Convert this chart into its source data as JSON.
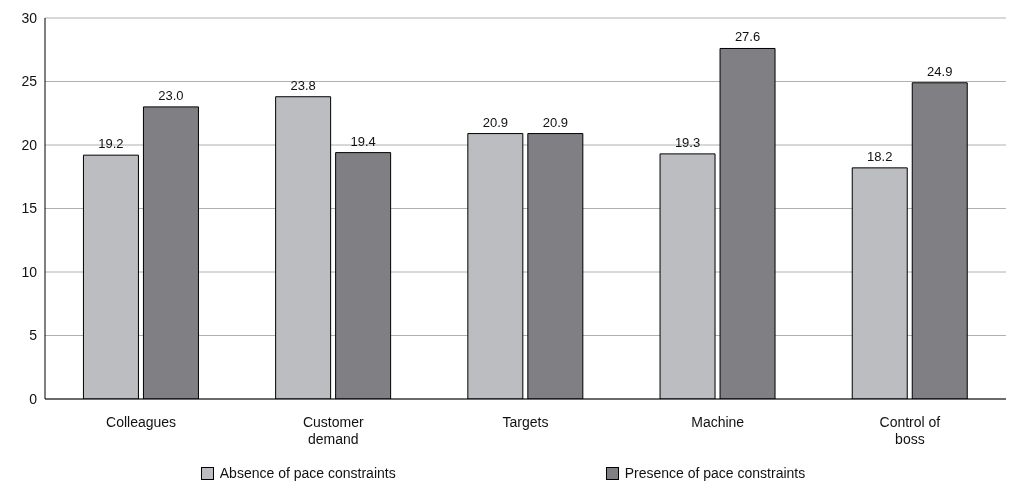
{
  "chart_data": {
    "type": "bar",
    "categories": [
      "Colleagues",
      "Customer demand",
      "Targets",
      "Machine",
      "Control of boss"
    ],
    "series": [
      {
        "name": "Absence of pace constraints",
        "color": "#bcbdc1",
        "values": [
          19.2,
          23.8,
          20.9,
          19.3,
          18.2
        ],
        "value_labels": [
          "19.2",
          "23.8",
          "20.9",
          "19.3",
          "18.2"
        ]
      },
      {
        "name": "Presence of pace constraints",
        "color": "#808084",
        "values": [
          23.0,
          19.4,
          20.9,
          27.6,
          24.9
        ],
        "value_labels": [
          "23.0",
          "19.4",
          "20.9",
          "27.6",
          "24.9"
        ]
      }
    ],
    "ylim": [
      0,
      30
    ],
    "yticks": [
      0,
      5,
      10,
      15,
      20,
      25,
      30
    ],
    "grid": "y",
    "legend": "bottom"
  }
}
